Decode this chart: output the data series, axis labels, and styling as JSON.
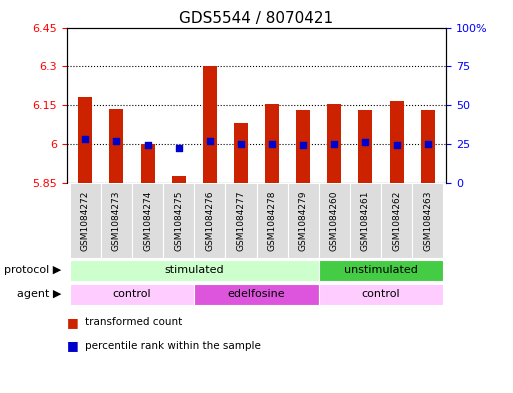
{
  "title": "GDS5544 / 8070421",
  "samples": [
    "GSM1084272",
    "GSM1084273",
    "GSM1084274",
    "GSM1084275",
    "GSM1084276",
    "GSM1084277",
    "GSM1084278",
    "GSM1084279",
    "GSM1084260",
    "GSM1084261",
    "GSM1084262",
    "GSM1084263"
  ],
  "transformed_count": [
    6.18,
    6.135,
    6.0,
    5.875,
    6.3,
    6.08,
    6.155,
    6.13,
    6.155,
    6.13,
    6.165,
    6.13
  ],
  "percentile_rank": [
    28,
    27,
    24,
    22,
    27,
    25,
    25,
    24,
    25,
    26,
    24,
    25
  ],
  "bar_bottom": 5.85,
  "ylim_left": [
    5.85,
    6.45
  ],
  "ylim_right": [
    0,
    100
  ],
  "yticks_left": [
    5.85,
    6.0,
    6.15,
    6.3,
    6.45
  ],
  "ytick_labels_left": [
    "5.85",
    "6",
    "6.15",
    "6.3",
    "6.45"
  ],
  "yticks_right": [
    0,
    25,
    50,
    75,
    100
  ],
  "ytick_labels_right": [
    "0",
    "25",
    "50",
    "75",
    "100%"
  ],
  "hlines": [
    6.0,
    6.15,
    6.3
  ],
  "bar_color": "#cc2200",
  "dot_color": "#0000cc",
  "protocol_groups": [
    {
      "label": "stimulated",
      "start": 0,
      "end": 8,
      "color": "#ccffcc"
    },
    {
      "label": "unstimulated",
      "start": 8,
      "end": 12,
      "color": "#44cc44"
    }
  ],
  "agent_groups": [
    {
      "label": "control",
      "start": 0,
      "end": 4,
      "color": "#ffccff"
    },
    {
      "label": "edelfosine",
      "start": 4,
      "end": 8,
      "color": "#dd55dd"
    },
    {
      "label": "control",
      "start": 8,
      "end": 12,
      "color": "#ffccff"
    }
  ],
  "legend_items": [
    {
      "label": "transformed count",
      "color": "#cc2200"
    },
    {
      "label": "percentile rank within the sample",
      "color": "#0000cc"
    }
  ],
  "bg_color": "#ffffff",
  "title_fontsize": 11,
  "tick_fontsize": 8,
  "label_fontsize": 8,
  "bar_width": 0.45
}
